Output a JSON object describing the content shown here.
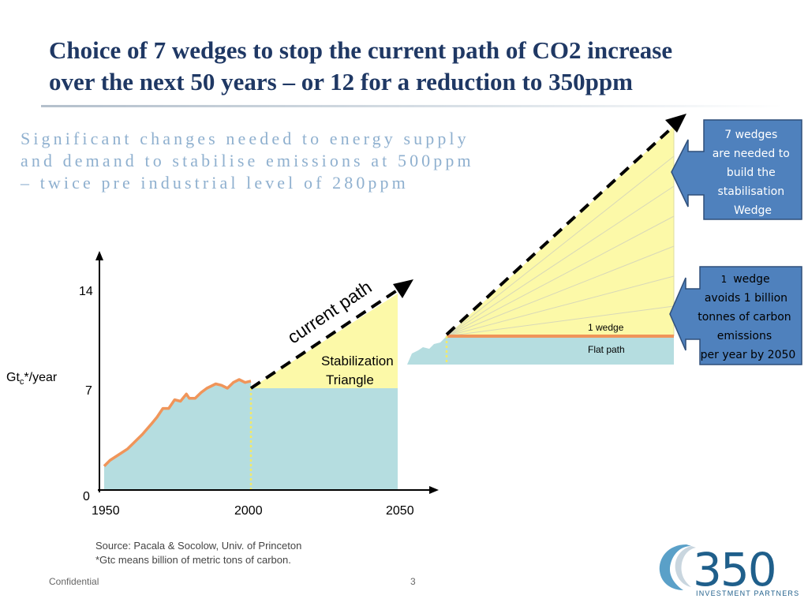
{
  "slide": {
    "title_lines": [
      "Choice of 7 wedges to stop the current path of CO2 increase",
      "over the next 50 years – or 12 for a reduction to 350ppm"
    ],
    "subtitle_lines": [
      "Significant changes needed to energy supply",
      "and demand to stabilise emissions at 500ppm",
      "– twice pre industrial level of 280ppm"
    ],
    "source": [
      "Source:  Pacala & Socolow, Univ. of Princeton",
      "*Gtc means billion of metric tons of carbon."
    ],
    "footer_left": "Confidential",
    "page_number": "3",
    "logo_text": "350",
    "logo_subtext": "INVESTMENT PARTNERS"
  },
  "chart_data": [
    {
      "type": "area",
      "ylabel_main": "Gt",
      "ylabel_sub": "c",
      "ylabel_suffix": "*/year",
      "x_ticks": [
        1950,
        2000,
        2050
      ],
      "y_ticks": [
        0,
        7,
        14
      ],
      "xlim": [
        1950,
        2055
      ],
      "ylim": [
        0,
        16
      ],
      "series": [
        {
          "x": [
            1950,
            1952,
            1955,
            1958,
            1960,
            1963,
            1966,
            1968,
            1970,
            1972,
            1974,
            1976,
            1978,
            1979,
            1981,
            1983,
            1985,
            1988,
            1990,
            1992,
            1994,
            1996,
            1998,
            2000
          ],
          "y": [
            1.6,
            2.0,
            2.4,
            2.8,
            3.2,
            3.8,
            4.5,
            5.0,
            5.6,
            5.6,
            6.2,
            6.1,
            6.6,
            6.3,
            6.3,
            6.7,
            7.0,
            7.3,
            7.2,
            7.0,
            7.4,
            7.6,
            7.4,
            7.5
          ]
        }
      ],
      "current_path": {
        "x": [
          2000,
          2055
        ],
        "y": [
          7.5,
          15
        ]
      },
      "flat_path_value": 7.5,
      "stabilization_triangle_top": 14,
      "annotations": [
        "current path",
        "Stabilization",
        "Triangle"
      ]
    },
    {
      "type": "area",
      "wedge_count": 7,
      "labels": {
        "one_wedge": "1 wedge",
        "flat_path": "Flat path"
      }
    }
  ],
  "callouts": {
    "top": [
      "7 wedges",
      "are needed to",
      "build the",
      "stabilisation",
      "Wedge"
    ],
    "bottom_number": "1",
    "bottom_rest": [
      "wedge",
      "avoids 1 billion",
      "tonnes of carbon",
      "emissions",
      "per year by 2050"
    ]
  },
  "colors": {
    "title": "#1f3864",
    "subtitle": "#8fb0cf",
    "teal": "#b5dde0",
    "yellow": "#fcf9a8",
    "orange": "#f0955a",
    "callout_fill": "#4f81bd",
    "callout_border": "#2f4f7a",
    "dashed": "#000000"
  }
}
